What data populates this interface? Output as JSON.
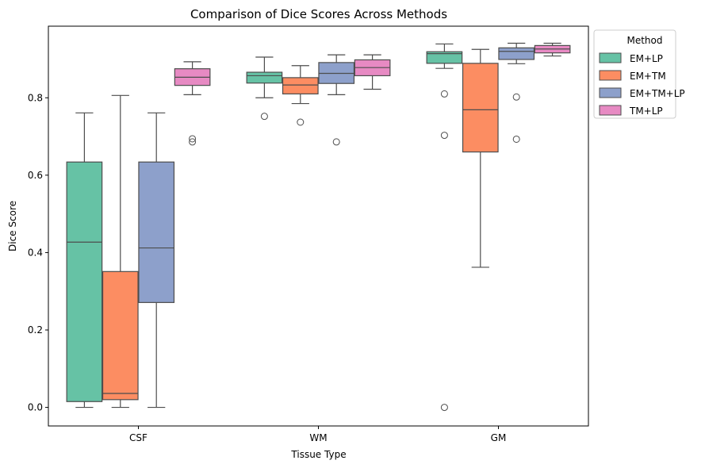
{
  "chart_data": {
    "type": "boxplot",
    "title": "Comparison of Dice Scores Across Methods",
    "xlabel": "Tissue Type",
    "ylabel": "Dice Score",
    "ylim": [
      -0.048,
      0.985
    ],
    "yticks": [
      0.0,
      0.2,
      0.4,
      0.6,
      0.8
    ],
    "ytick_labels": [
      "0.0",
      "0.2",
      "0.4",
      "0.6",
      "0.8"
    ],
    "categories": [
      "CSF",
      "WM",
      "GM"
    ],
    "legend": {
      "title": "Method",
      "placement": "outside-top-right"
    },
    "grid": false,
    "series": [
      {
        "name": "EM+LP",
        "color": "#66c2a5",
        "boxes": [
          {
            "whisker_low": 0.0,
            "q1": 0.015,
            "median": 0.427,
            "q3": 0.634,
            "whisker_high": 0.761,
            "outliers": []
          },
          {
            "whisker_low": 0.8,
            "q1": 0.838,
            "median": 0.857,
            "q3": 0.866,
            "whisker_high": 0.905,
            "outliers": [
              0.752
            ]
          },
          {
            "whisker_low": 0.876,
            "q1": 0.889,
            "median": 0.914,
            "q3": 0.919,
            "whisker_high": 0.939,
            "outliers": [
              0.81,
              0.703,
              0.0
            ]
          }
        ]
      },
      {
        "name": "EM+TM",
        "color": "#fc8d62",
        "boxes": [
          {
            "whisker_low": 0.0,
            "q1": 0.02,
            "median": 0.036,
            "q3": 0.351,
            "whisker_high": 0.806,
            "outliers": []
          },
          {
            "whisker_low": 0.785,
            "q1": 0.81,
            "median": 0.833,
            "q3": 0.852,
            "whisker_high": 0.883,
            "outliers": [
              0.737
            ]
          },
          {
            "whisker_low": 0.362,
            "q1": 0.66,
            "median": 0.769,
            "q3": 0.889,
            "whisker_high": 0.925,
            "outliers": []
          }
        ]
      },
      {
        "name": "EM+TM+LP",
        "color": "#8da0cb",
        "boxes": [
          {
            "whisker_low": 0.0,
            "q1": 0.271,
            "median": 0.412,
            "q3": 0.634,
            "whisker_high": 0.761,
            "outliers": []
          },
          {
            "whisker_low": 0.808,
            "q1": 0.837,
            "median": 0.863,
            "q3": 0.891,
            "whisker_high": 0.911,
            "outliers": [
              0.686
            ]
          },
          {
            "whisker_low": 0.888,
            "q1": 0.899,
            "median": 0.92,
            "q3": 0.929,
            "whisker_high": 0.941,
            "outliers": [
              0.802,
              0.693
            ]
          }
        ]
      },
      {
        "name": "TM+LP",
        "color": "#e78ac3",
        "boxes": [
          {
            "whisker_low": 0.808,
            "q1": 0.832,
            "median": 0.853,
            "q3": 0.875,
            "whisker_high": 0.893,
            "outliers": [
              0.694,
              0.686
            ]
          },
          {
            "whisker_low": 0.822,
            "q1": 0.857,
            "median": 0.878,
            "q3": 0.898,
            "whisker_high": 0.911,
            "outliers": []
          },
          {
            "whisker_low": 0.908,
            "q1": 0.916,
            "median": 0.926,
            "q3": 0.935,
            "whisker_high": 0.941,
            "outliers": []
          }
        ]
      }
    ]
  }
}
